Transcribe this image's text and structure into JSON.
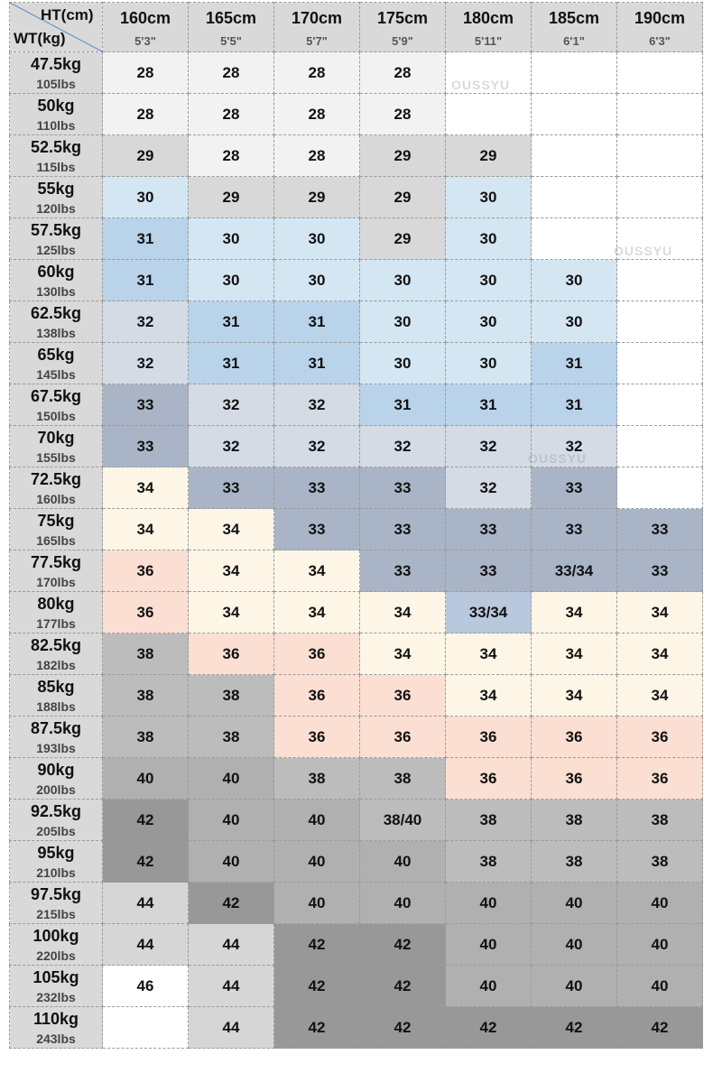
{
  "header": {
    "ht_label": "HT(cm)",
    "wt_label": "WT(kg)",
    "columns": [
      {
        "cm": "160cm",
        "ft": "5'3\""
      },
      {
        "cm": "165cm",
        "ft": "5'5\""
      },
      {
        "cm": "170cm",
        "ft": "5'7\""
      },
      {
        "cm": "175cm",
        "ft": "5'9\""
      },
      {
        "cm": "180cm",
        "ft": "5'11\""
      },
      {
        "cm": "185cm",
        "ft": "6'1\""
      },
      {
        "cm": "190cm",
        "ft": "6'3\""
      }
    ]
  },
  "watermark": "OUSSYU",
  "rows": [
    {
      "kg": "47.5kg",
      "lbs": "105lbs",
      "sizes": [
        "28",
        "28",
        "28",
        "28",
        "",
        "",
        ""
      ]
    },
    {
      "kg": "50kg",
      "lbs": "110lbs",
      "sizes": [
        "28",
        "28",
        "28",
        "28",
        "",
        "",
        ""
      ]
    },
    {
      "kg": "52.5kg",
      "lbs": "115lbs",
      "sizes": [
        "29",
        "28",
        "28",
        "29",
        "29",
        "",
        ""
      ]
    },
    {
      "kg": "55kg",
      "lbs": "120lbs",
      "sizes": [
        "30",
        "29",
        "29",
        "29",
        "30",
        "",
        ""
      ]
    },
    {
      "kg": "57.5kg",
      "lbs": "125lbs",
      "sizes": [
        "31",
        "30",
        "30",
        "29",
        "30",
        "",
        ""
      ]
    },
    {
      "kg": "60kg",
      "lbs": "130lbs",
      "sizes": [
        "31",
        "30",
        "30",
        "30",
        "30",
        "30",
        ""
      ]
    },
    {
      "kg": "62.5kg",
      "lbs": "138lbs",
      "sizes": [
        "32",
        "31",
        "31",
        "30",
        "30",
        "30",
        ""
      ]
    },
    {
      "kg": "65kg",
      "lbs": "145lbs",
      "sizes": [
        "32",
        "31",
        "31",
        "30",
        "30",
        "31",
        ""
      ]
    },
    {
      "kg": "67.5kg",
      "lbs": "150lbs",
      "sizes": [
        "33",
        "32",
        "32",
        "31",
        "31",
        "31",
        ""
      ]
    },
    {
      "kg": "70kg",
      "lbs": "155lbs",
      "sizes": [
        "33",
        "32",
        "32",
        "32",
        "32",
        "32",
        ""
      ]
    },
    {
      "kg": "72.5kg",
      "lbs": "160lbs",
      "sizes": [
        "34",
        "33",
        "33",
        "33",
        "32",
        "33",
        ""
      ]
    },
    {
      "kg": "75kg",
      "lbs": "165lbs",
      "sizes": [
        "34",
        "34",
        "33",
        "33",
        "33",
        "33",
        "33"
      ]
    },
    {
      "kg": "77.5kg",
      "lbs": "170lbs",
      "sizes": [
        "36",
        "34",
        "34",
        "33",
        "33",
        "33/34",
        "33"
      ]
    },
    {
      "kg": "80kg",
      "lbs": "177lbs",
      "sizes": [
        "36",
        "34",
        "34",
        "34",
        "33/34",
        "34",
        "34"
      ]
    },
    {
      "kg": "82.5kg",
      "lbs": "182lbs",
      "sizes": [
        "38",
        "36",
        "36",
        "34",
        "34",
        "34",
        "34"
      ]
    },
    {
      "kg": "85kg",
      "lbs": "188lbs",
      "sizes": [
        "38",
        "38",
        "36",
        "36",
        "34",
        "34",
        "34"
      ]
    },
    {
      "kg": "87.5kg",
      "lbs": "193lbs",
      "sizes": [
        "38",
        "38",
        "36",
        "36",
        "36",
        "36",
        "36"
      ]
    },
    {
      "kg": "90kg",
      "lbs": "200lbs",
      "sizes": [
        "40",
        "40",
        "38",
        "38",
        "36",
        "36",
        "36"
      ]
    },
    {
      "kg": "92.5kg",
      "lbs": "205lbs",
      "sizes": [
        "42",
        "40",
        "40",
        "38/40",
        "38",
        "38",
        "38"
      ]
    },
    {
      "kg": "95kg",
      "lbs": "210lbs",
      "sizes": [
        "42",
        "40",
        "40",
        "40",
        "38",
        "38",
        "38"
      ]
    },
    {
      "kg": "97.5kg",
      "lbs": "215lbs",
      "sizes": [
        "44",
        "42",
        "40",
        "40",
        "40",
        "40",
        "40"
      ]
    },
    {
      "kg": "100kg",
      "lbs": "220lbs",
      "sizes": [
        "44",
        "44",
        "42",
        "42",
        "40",
        "40",
        "40"
      ]
    },
    {
      "kg": "105kg",
      "lbs": "232lbs",
      "sizes": [
        "46",
        "44",
        "42",
        "42",
        "40",
        "40",
        "40"
      ]
    },
    {
      "kg": "110kg",
      "lbs": "243lbs",
      "sizes": [
        "",
        "44",
        "42",
        "42",
        "42",
        "42",
        "42"
      ]
    }
  ],
  "size_colors": {
    "": "#ffffff",
    "28": "#f2f2f2",
    "29": "#d8d8d8",
    "30": "#d5e6f3",
    "31": "#b9d3ea",
    "32": "#d4dbe5",
    "33": "#a9b5c6",
    "33/34": "#a9b5c6",
    "33/34_alt": "#b9c8dc",
    "34": "#fdf6e6",
    "36": "#fbdfd2",
    "38": "#bcbcbc",
    "38/40": "#bcbcbc",
    "40": "#b0b0b0",
    "42": "#989898",
    "44": "#d6d6d6",
    "46": "#ffffff"
  }
}
